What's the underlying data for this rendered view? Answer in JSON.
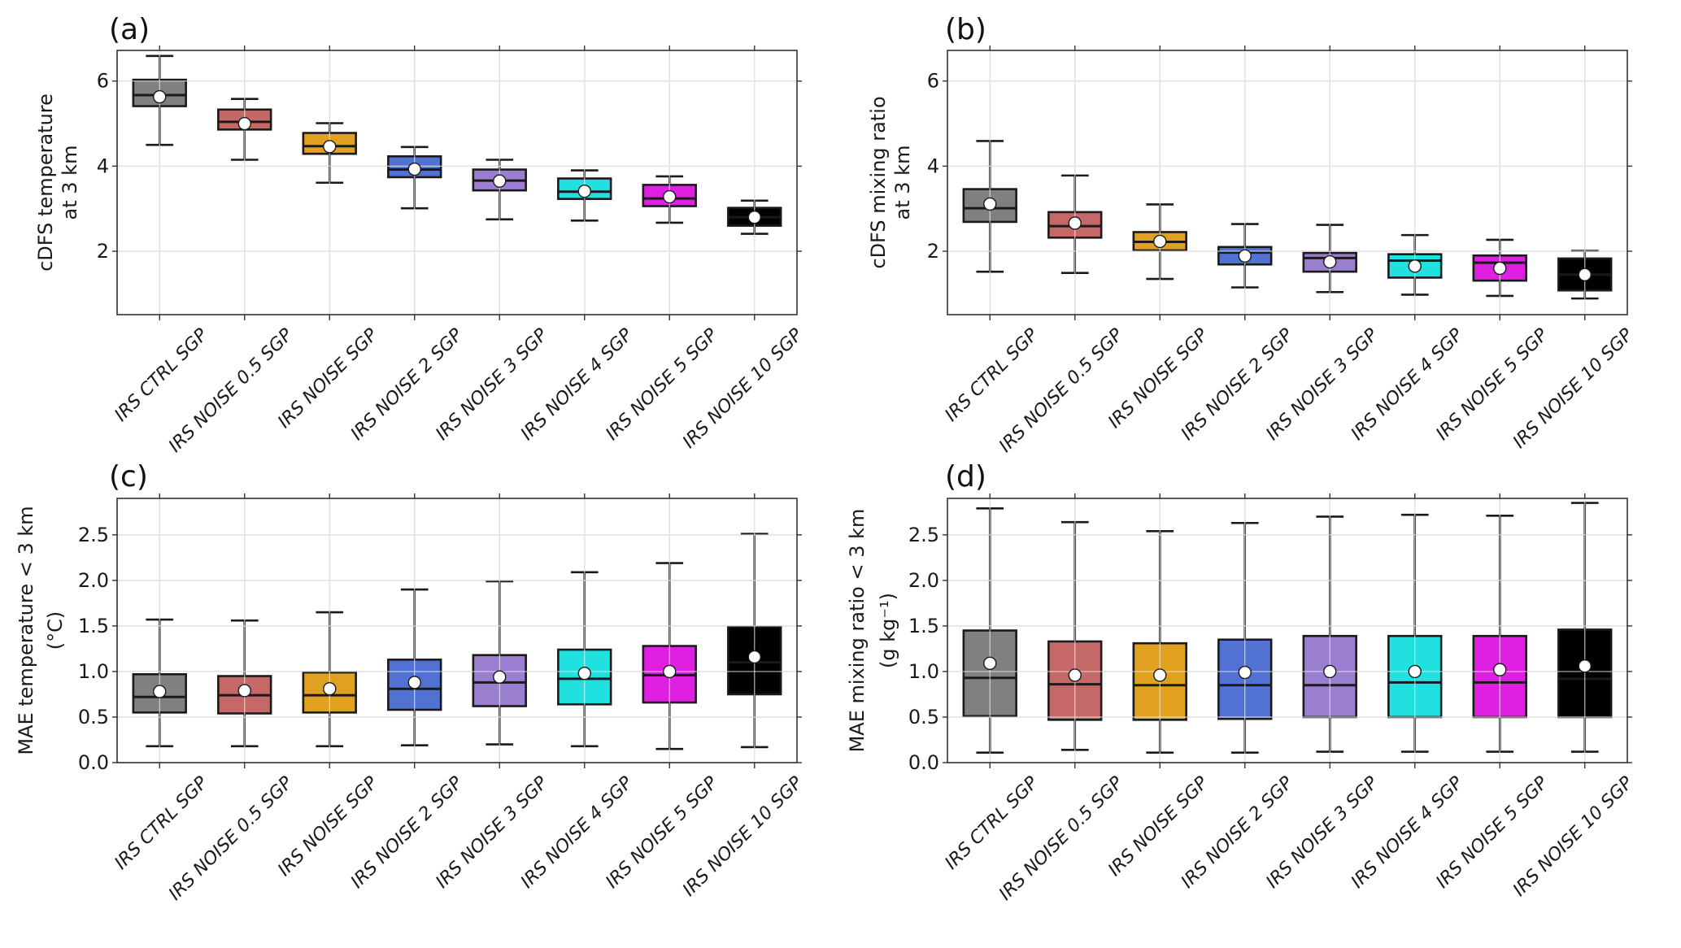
{
  "chart_data": [
    {
      "id": "a",
      "type": "box",
      "panel_letter": "(a)",
      "title": "",
      "ylabel": [
        "cDFS temperature",
        "at 3 km"
      ],
      "xlabel": "",
      "ylim": [
        0.51,
        6.72
      ],
      "yticks": [
        2,
        4,
        6
      ],
      "ytick_labels": [
        "2",
        "4",
        "6"
      ],
      "grid": true,
      "categories": [
        "IRS CTRL SGP",
        "IRS NOISE 0.5 SGP",
        "IRS NOISE SGP",
        "IRS NOISE 2 SGP",
        "IRS NOISE 3 SGP",
        "IRS NOISE 4 SGP",
        "IRS NOISE 5 SGP",
        "IRS NOISE 10 SGP"
      ],
      "colors": [
        "#808080",
        "#c56868",
        "#e0a020",
        "#5272d3",
        "#9a7fd1",
        "#20e0e0",
        "#e020e0",
        "#000000"
      ],
      "boxes": [
        {
          "whisker_low": 4.5,
          "q1": 5.41,
          "median": 5.67,
          "q3": 6.03,
          "whisker_high": 6.59,
          "mean": 5.63
        },
        {
          "whisker_low": 4.15,
          "q1": 4.86,
          "median": 5.04,
          "q3": 5.33,
          "whisker_high": 5.58,
          "mean": 5.0
        },
        {
          "whisker_low": 3.61,
          "q1": 4.29,
          "median": 4.47,
          "q3": 4.78,
          "whisker_high": 5.01,
          "mean": 4.46
        },
        {
          "whisker_low": 3.01,
          "q1": 3.74,
          "median": 3.92,
          "q3": 4.23,
          "whisker_high": 4.45,
          "mean": 3.93
        },
        {
          "whisker_low": 2.75,
          "q1": 3.43,
          "median": 3.66,
          "q3": 3.92,
          "whisker_high": 4.15,
          "mean": 3.65
        },
        {
          "whisker_low": 2.72,
          "q1": 3.23,
          "median": 3.4,
          "q3": 3.71,
          "whisker_high": 3.9,
          "mean": 3.41
        },
        {
          "whisker_low": 2.67,
          "q1": 3.06,
          "median": 3.24,
          "q3": 3.56,
          "whisker_high": 3.76,
          "mean": 3.28
        },
        {
          "whisker_low": 2.41,
          "q1": 2.6,
          "median": 2.8,
          "q3": 3.02,
          "whisker_high": 3.19,
          "mean": 2.8
        }
      ]
    },
    {
      "id": "b",
      "type": "box",
      "panel_letter": "(b)",
      "title": "",
      "ylabel": [
        "cDFS mixing ratio",
        "at 3 km"
      ],
      "xlabel": "",
      "ylim": [
        0.51,
        6.72
      ],
      "yticks": [
        2,
        4,
        6
      ],
      "ytick_labels": [
        "2",
        "4",
        "6"
      ],
      "grid": true,
      "categories": [
        "IRS CTRL SGP",
        "IRS NOISE 0.5 SGP",
        "IRS NOISE SGP",
        "IRS NOISE 2 SGP",
        "IRS NOISE 3 SGP",
        "IRS NOISE 4 SGP",
        "IRS NOISE 5 SGP",
        "IRS NOISE 10 SGP"
      ],
      "colors": [
        "#808080",
        "#c56868",
        "#e0a020",
        "#5272d3",
        "#9a7fd1",
        "#20e0e0",
        "#e020e0",
        "#000000"
      ],
      "boxes": [
        {
          "whisker_low": 1.52,
          "q1": 2.69,
          "median": 3.01,
          "q3": 3.46,
          "whisker_high": 4.59,
          "mean": 3.11
        },
        {
          "whisker_low": 1.49,
          "q1": 2.32,
          "median": 2.59,
          "q3": 2.92,
          "whisker_high": 3.78,
          "mean": 2.66
        },
        {
          "whisker_low": 1.35,
          "q1": 2.02,
          "median": 2.22,
          "q3": 2.45,
          "whisker_high": 3.1,
          "mean": 2.23
        },
        {
          "whisker_low": 1.15,
          "q1": 1.69,
          "median": 1.97,
          "q3": 2.1,
          "whisker_high": 2.64,
          "mean": 1.89
        },
        {
          "whisker_low": 1.04,
          "q1": 1.52,
          "median": 1.84,
          "q3": 1.96,
          "whisker_high": 2.62,
          "mean": 1.75
        },
        {
          "whisker_low": 0.98,
          "q1": 1.38,
          "median": 1.78,
          "q3": 1.93,
          "whisker_high": 2.38,
          "mean": 1.65
        },
        {
          "whisker_low": 0.95,
          "q1": 1.31,
          "median": 1.73,
          "q3": 1.9,
          "whisker_high": 2.27,
          "mean": 1.6
        },
        {
          "whisker_low": 0.89,
          "q1": 1.08,
          "median": 1.45,
          "q3": 1.83,
          "whisker_high": 2.01,
          "mean": 1.45
        }
      ]
    },
    {
      "id": "c",
      "type": "box",
      "panel_letter": "(c)",
      "title": "",
      "ylabel": [
        "MAE temperature < 3 km",
        "(°C)"
      ],
      "xlabel": "",
      "ylim": [
        0.0,
        2.9
      ],
      "yticks": [
        0.0,
        0.5,
        1.0,
        1.5,
        2.0,
        2.5
      ],
      "ytick_labels": [
        "0.0",
        "0.5",
        "1.0",
        "1.5",
        "2.0",
        "2.5"
      ],
      "grid": true,
      "categories": [
        "IRS CTRL SGP",
        "IRS NOISE 0.5 SGP",
        "IRS NOISE SGP",
        "IRS NOISE 2 SGP",
        "IRS NOISE 3 SGP",
        "IRS NOISE 4 SGP",
        "IRS NOISE 5 SGP",
        "IRS NOISE 10 SGP"
      ],
      "colors": [
        "#808080",
        "#c56868",
        "#e0a020",
        "#5272d3",
        "#9a7fd1",
        "#20e0e0",
        "#e020e0",
        "#000000"
      ],
      "boxes": [
        {
          "whisker_low": 0.18,
          "q1": 0.55,
          "median": 0.72,
          "q3": 0.97,
          "whisker_high": 1.57,
          "mean": 0.78
        },
        {
          "whisker_low": 0.18,
          "q1": 0.54,
          "median": 0.74,
          "q3": 0.95,
          "whisker_high": 1.56,
          "mean": 0.79
        },
        {
          "whisker_low": 0.18,
          "q1": 0.55,
          "median": 0.74,
          "q3": 0.99,
          "whisker_high": 1.65,
          "mean": 0.81
        },
        {
          "whisker_low": 0.19,
          "q1": 0.58,
          "median": 0.81,
          "q3": 1.13,
          "whisker_high": 1.9,
          "mean": 0.88
        },
        {
          "whisker_low": 0.2,
          "q1": 0.62,
          "median": 0.88,
          "q3": 1.18,
          "whisker_high": 1.99,
          "mean": 0.94
        },
        {
          "whisker_low": 0.18,
          "q1": 0.64,
          "median": 0.92,
          "q3": 1.24,
          "whisker_high": 2.09,
          "mean": 0.98
        },
        {
          "whisker_low": 0.15,
          "q1": 0.66,
          "median": 0.96,
          "q3": 1.28,
          "whisker_high": 2.19,
          "mean": 1.0
        },
        {
          "whisker_low": 0.17,
          "q1": 0.75,
          "median": 1.1,
          "q3": 1.49,
          "whisker_high": 2.51,
          "mean": 1.16
        }
      ]
    },
    {
      "id": "d",
      "type": "box",
      "panel_letter": "(d)",
      "title": "",
      "ylabel": [
        "MAE mixing ratio < 3 km",
        "(g kg⁻¹)"
      ],
      "xlabel": "",
      "ylim": [
        0.0,
        2.9
      ],
      "yticks": [
        0.0,
        0.5,
        1.0,
        1.5,
        2.0,
        2.5
      ],
      "ytick_labels": [
        "0.0",
        "0.5",
        "1.0",
        "1.5",
        "2.0",
        "2.5"
      ],
      "grid": true,
      "categories": [
        "IRS CTRL SGP",
        "IRS NOISE 0.5 SGP",
        "IRS NOISE SGP",
        "IRS NOISE 2 SGP",
        "IRS NOISE 3 SGP",
        "IRS NOISE 4 SGP",
        "IRS NOISE 5 SGP",
        "IRS NOISE 10 SGP"
      ],
      "colors": [
        "#808080",
        "#c56868",
        "#e0a020",
        "#5272d3",
        "#9a7fd1",
        "#20e0e0",
        "#e020e0",
        "#000000"
      ],
      "boxes": [
        {
          "whisker_low": 0.11,
          "q1": 0.51,
          "median": 0.93,
          "q3": 1.45,
          "whisker_high": 2.79,
          "mean": 1.09
        },
        {
          "whisker_low": 0.14,
          "q1": 0.47,
          "median": 0.86,
          "q3": 1.33,
          "whisker_high": 2.64,
          "mean": 0.96
        },
        {
          "whisker_low": 0.11,
          "q1": 0.47,
          "median": 0.85,
          "q3": 1.31,
          "whisker_high": 2.54,
          "mean": 0.96
        },
        {
          "whisker_low": 0.11,
          "q1": 0.48,
          "median": 0.85,
          "q3": 1.35,
          "whisker_high": 2.63,
          "mean": 0.99
        },
        {
          "whisker_low": 0.12,
          "q1": 0.5,
          "median": 0.85,
          "q3": 1.39,
          "whisker_high": 2.7,
          "mean": 1.0
        },
        {
          "whisker_low": 0.12,
          "q1": 0.5,
          "median": 0.88,
          "q3": 1.39,
          "whisker_high": 2.72,
          "mean": 1.0
        },
        {
          "whisker_low": 0.12,
          "q1": 0.5,
          "median": 0.88,
          "q3": 1.39,
          "whisker_high": 2.71,
          "mean": 1.02
        },
        {
          "whisker_low": 0.12,
          "q1": 0.5,
          "median": 0.92,
          "q3": 1.46,
          "whisker_high": 2.85,
          "mean": 1.06
        }
      ]
    }
  ]
}
